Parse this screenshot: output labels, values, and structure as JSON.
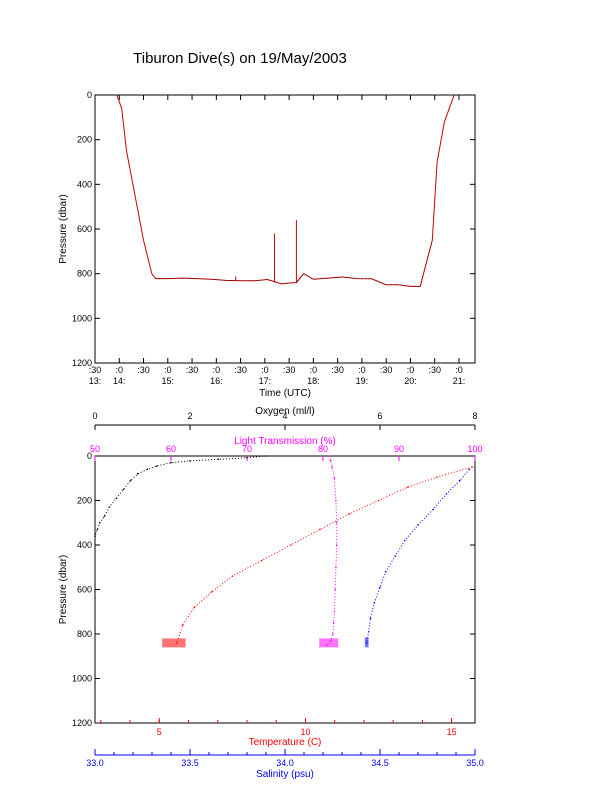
{
  "title": "Tiburon Dive(s) on 19/May/2003",
  "colors": {
    "pressure_trace": "#cc0000",
    "oxygen": "#000000",
    "transmission": "#ff00ff",
    "temperature": "#ff0000",
    "salinity": "#0000ff"
  },
  "chart_data": [
    {
      "type": "line",
      "title": "Tiburon Dive(s) on 19/May/2003",
      "xlabel": "Time (UTC)",
      "ylabel": "Pressure (dbar)",
      "y_reversed": true,
      "ylim": [
        0,
        1200
      ],
      "xlim": [
        13.5,
        21.33
      ],
      "x_ticks_top": [
        ":30",
        ":0",
        ":30",
        ":0",
        ":30",
        ":0",
        ":30",
        ":0",
        ":30",
        ":0",
        ":30",
        ":0",
        ":30",
        ":0",
        ":30",
        ":0"
      ],
      "x_ticks_bottom": [
        "13:",
        "14:",
        "15:",
        "16:",
        "17:",
        "18:",
        "19:",
        "20:",
        "21:"
      ],
      "x_tick_positions": [
        13.5,
        14.0,
        14.5,
        15.0,
        15.5,
        16.0,
        16.5,
        17.0,
        17.5,
        18.0,
        18.5,
        19.0,
        19.5,
        20.0,
        20.5,
        21.0
      ],
      "y_ticks": [
        "0",
        "200",
        "400",
        "600",
        "800",
        "1000",
        "1200"
      ],
      "series": [
        {
          "x": [
            13.95,
            14.05,
            14.15,
            14.35,
            14.5,
            14.67,
            14.75,
            15.0,
            15.3,
            15.6,
            15.9,
            16.2,
            16.5,
            16.8,
            17.05,
            17.35,
            17.5,
            17.65,
            17.8,
            18.0,
            18.3,
            18.6,
            18.9,
            19.2,
            19.5,
            19.75,
            20.0,
            20.2,
            20.45,
            20.55,
            20.7,
            20.85,
            20.9
          ],
          "y": [
            0,
            60,
            250,
            480,
            650,
            800,
            822,
            822,
            820,
            822,
            825,
            830,
            832,
            832,
            826,
            846,
            842,
            840,
            800,
            825,
            820,
            815,
            822,
            823,
            850,
            850,
            857,
            857,
            650,
            300,
            120,
            30,
            0
          ]
        }
      ],
      "spikes": [
        {
          "x": 16.4,
          "y_from": 812,
          "y_to": 830
        },
        {
          "x": 17.2,
          "y_from": 620,
          "y_to": 835
        },
        {
          "x": 17.65,
          "y_from": 560,
          "y_to": 840
        }
      ]
    },
    {
      "type": "scatter",
      "ylabel": "Pressure (dbar)",
      "y_reversed": true,
      "ylim": [
        0,
        1200
      ],
      "y_ticks": [
        "0",
        "200",
        "400",
        "600",
        "800",
        "1000",
        "1200"
      ],
      "axes": {
        "oxygen": {
          "label": "Oxygen (ml/l)",
          "range": [
            0,
            8
          ],
          "ticks": [
            "0",
            "2",
            "4",
            "6",
            "8"
          ]
        },
        "transmission": {
          "label": "Light Transmission (%)",
          "range": [
            50,
            100
          ],
          "ticks": [
            "50",
            "60",
            "70",
            "80",
            "90",
            "100"
          ]
        },
        "temperature": {
          "label": "Temperature (C)",
          "range": [
            2.8,
            15.8
          ],
          "ticks": [
            "5",
            "10",
            "15"
          ]
        },
        "salinity": {
          "label": "Salinity (psu)",
          "range": [
            33.0,
            35.0
          ],
          "ticks": [
            "33.0",
            "33.5",
            "34.0",
            "34.5",
            "35.0"
          ]
        }
      },
      "series": [
        {
          "name": "Oxygen (ml/l)",
          "x": [
            3.6,
            3.2,
            2.6,
            2.0,
            1.6,
            1.3,
            1.1,
            0.9,
            0.75,
            0.6,
            0.45,
            0.3,
            0.2,
            0.1,
            0.05,
            0.0
          ],
          "y": [
            0,
            8,
            15,
            22,
            30,
            45,
            60,
            80,
            110,
            150,
            190,
            230,
            270,
            300,
            330,
            360
          ]
        },
        {
          "name": "Light Transmission (%)",
          "x": [
            80.8,
            81.0,
            81.2,
            81.5,
            81.7,
            81.8,
            81.8,
            81.7,
            81.6,
            81.5,
            81.4,
            81.3,
            81.0,
            80.5
          ],
          "y": [
            0,
            20,
            50,
            100,
            200,
            300,
            400,
            500,
            600,
            700,
            750,
            800,
            830,
            850
          ]
        },
        {
          "name": "Temperature (C)",
          "x": [
            15.7,
            14.5,
            13.5,
            12.5,
            11.5,
            10.5,
            9.5,
            8.5,
            7.5,
            6.8,
            6.2,
            5.8,
            5.6
          ],
          "y": [
            50,
            95,
            140,
            200,
            260,
            330,
            400,
            470,
            540,
            610,
            680,
            760,
            840
          ]
        },
        {
          "name": "Salinity (psu)",
          "x": [
            34.97,
            34.92,
            34.85,
            34.78,
            34.7,
            34.63,
            34.58,
            34.53,
            34.5,
            34.47,
            34.45,
            34.44,
            34.43
          ],
          "y": [
            60,
            110,
            170,
            240,
            310,
            380,
            450,
            520,
            590,
            660,
            730,
            790,
            840
          ]
        }
      ],
      "clusters": [
        {
          "name": "Temperature (C)",
          "x_range": [
            5.1,
            5.9
          ],
          "y_range": [
            820,
            860
          ]
        },
        {
          "name": "Light Transmission (%)",
          "x_range": [
            79.5,
            82.0
          ],
          "y_range": [
            820,
            860
          ]
        },
        {
          "name": "Salinity (psu)",
          "x_range": [
            34.42,
            34.44
          ],
          "y_range": [
            815,
            860
          ]
        }
      ]
    }
  ]
}
